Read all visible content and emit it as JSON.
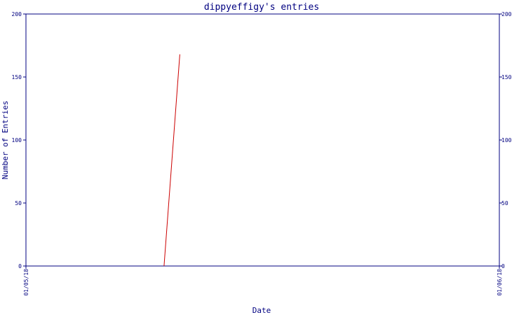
{
  "chart_data": {
    "type": "line",
    "title": "dippyeffigy's entries",
    "xlabel": "Date",
    "ylabel": "Number of Entries",
    "x_ticks": [
      "01/05/18",
      "01/06/18"
    ],
    "ylim": [
      0,
      200
    ],
    "y_ticks": [
      "0",
      "50",
      "100",
      "150",
      "200"
    ],
    "grid": false,
    "series": [
      {
        "name": "",
        "color": "#cc0000",
        "points": [
          {
            "x": "2018-01-05 07:00",
            "y": 0
          },
          {
            "x": "2018-01-05 07:48",
            "y": 168
          }
        ]
      }
    ],
    "axis_color": "#000080"
  }
}
